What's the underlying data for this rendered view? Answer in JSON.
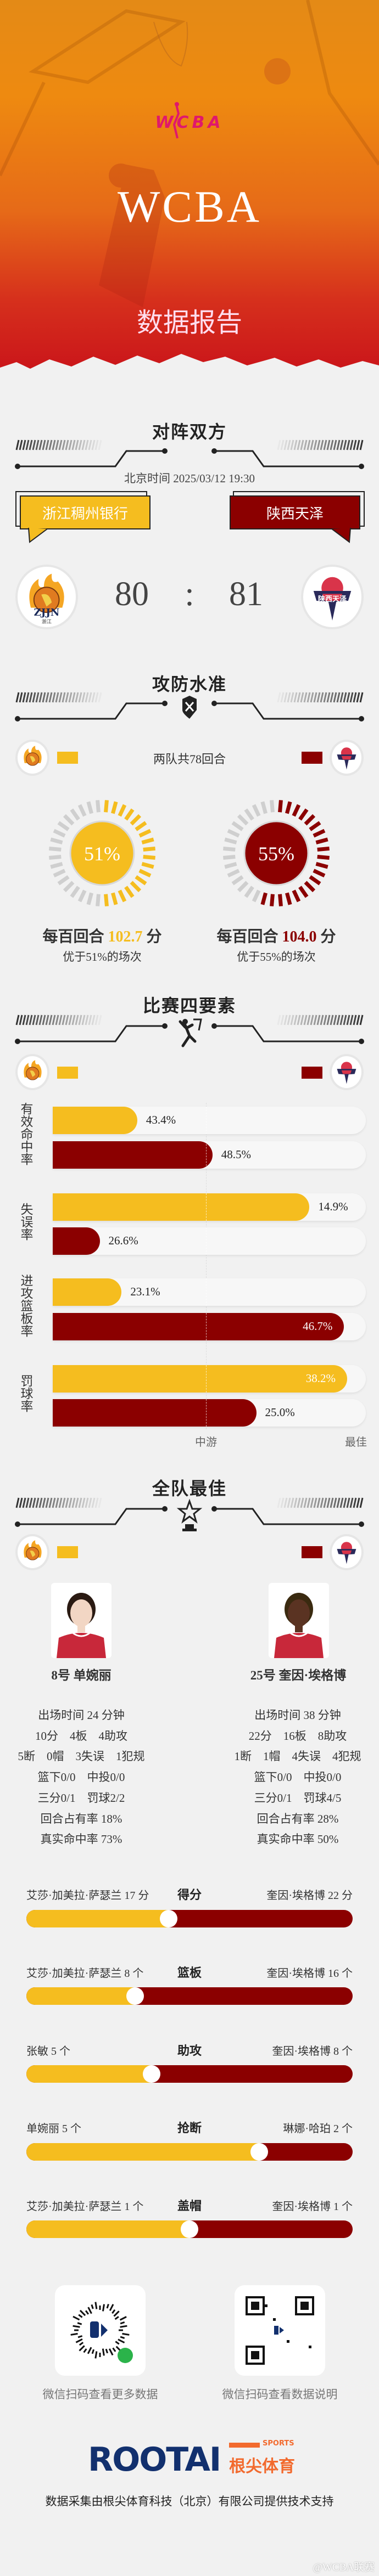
{
  "colors": {
    "home": "#f5bd1f",
    "away": "#8b0000",
    "accent_logo": "#e0186c"
  },
  "hero": {
    "logo_text": "WCBA",
    "title": "WCBA",
    "subtitle": "数据报告"
  },
  "matchup": {
    "title": "对阵双方",
    "datetime": "北京时间 2025/03/12 19:30",
    "home_name": "浙江稠州银行",
    "away_name": "陕西天泽",
    "home_score": "80",
    "separator": ":",
    "away_score": "81",
    "home_logo_text": "ZJJN",
    "home_logo_sub": "浙江",
    "away_logo_text": "陕西天泽"
  },
  "efficiency": {
    "title": "攻防水准",
    "icon": "shield-crossed-swords-icon",
    "possessions": "两队共78回合",
    "home": {
      "percentile": 51,
      "percent_label": "51%",
      "rating_prefix": "每百回合",
      "rating": "102.7",
      "rating_suffix": "分",
      "note": "优于51%的场次"
    },
    "away": {
      "percentile": 55,
      "percent_label": "55%",
      "rating_prefix": "每百回合",
      "rating": "104.0",
      "rating_suffix": "分",
      "note": "优于55%的场次"
    }
  },
  "four_factors": {
    "title": "比赛四要素",
    "icon": "dunk-icon",
    "axis_mid": "中游",
    "axis_best": "最佳",
    "factors": [
      {
        "label": "有效命中率",
        "home": {
          "value": "43.4%",
          "level": 0.27
        },
        "away": {
          "value": "48.5%",
          "level": 0.51
        }
      },
      {
        "label": "失误率",
        "home": {
          "value": "14.9%",
          "level": 0.82
        },
        "away": {
          "value": "26.6%",
          "level": 0.15
        }
      },
      {
        "label": "进攻篮板率",
        "home": {
          "value": "23.1%",
          "level": 0.22
        },
        "away": {
          "value": "46.7%",
          "level": 0.93
        }
      },
      {
        "label": "罚球率",
        "home": {
          "value": "38.2%",
          "level": 0.94
        },
        "away": {
          "value": "25.0%",
          "level": 0.65
        }
      }
    ]
  },
  "best": {
    "title": "全队最佳",
    "icon": "trophy-star-icon",
    "home_player": {
      "name": "8号 单婉丽",
      "stats": [
        "出场时间 24 分钟",
        "10分　4板　4助攻",
        "5断　0帽　3失误　1犯规",
        "篮下0/0　中投0/0",
        "三分0/1　罚球2/2",
        "回合占有率 18%",
        "真实命中率 73%"
      ]
    },
    "away_player": {
      "name": "25号 奎因·埃格博",
      "stats": [
        "出场时间 38 分钟",
        "22分　16板　8助攻",
        "1断　1帽　4失误　4犯规",
        "篮下0/0　中投0/0",
        "三分0/1　罚球4/5",
        "回合占有率 28%",
        "真实命中率 50%"
      ]
    },
    "leaders": [
      {
        "category": "得分",
        "home_label": "艾莎·加美拉·萨瑟兰 17 分",
        "home_value": 17,
        "away_label": "奎因·埃格博 22 分",
        "away_value": 22
      },
      {
        "category": "篮板",
        "home_label": "艾莎·加美拉·萨瑟兰 8 个",
        "home_value": 8,
        "away_label": "奎因·埃格博 16 个",
        "away_value": 16
      },
      {
        "category": "助攻",
        "home_label": "张敏 5 个",
        "home_value": 5,
        "away_label": "奎因·埃格博 8 个",
        "away_value": 8
      },
      {
        "category": "抢断",
        "home_label": "单婉丽 5 个",
        "home_value": 5,
        "away_label": "琳娜·哈珀 2 个",
        "away_value": 2
      },
      {
        "category": "盖帽",
        "home_label": "艾莎·加美拉·萨瑟兰 1 个",
        "home_value": 1,
        "away_label": "奎因·埃格博 1 个",
        "away_value": 1
      }
    ]
  },
  "qr": {
    "left_caption": "微信扫码查看更多数据",
    "right_caption": "微信扫码查看数据说明"
  },
  "footer": {
    "brand": "ROOTAI",
    "brand_sports": "SPORTS",
    "brand_cn": "根尖体育",
    "credit": "数据采集由根尖体育科技（北京）有限公司提供技术支持",
    "watermark": "@WCBA联赛"
  }
}
